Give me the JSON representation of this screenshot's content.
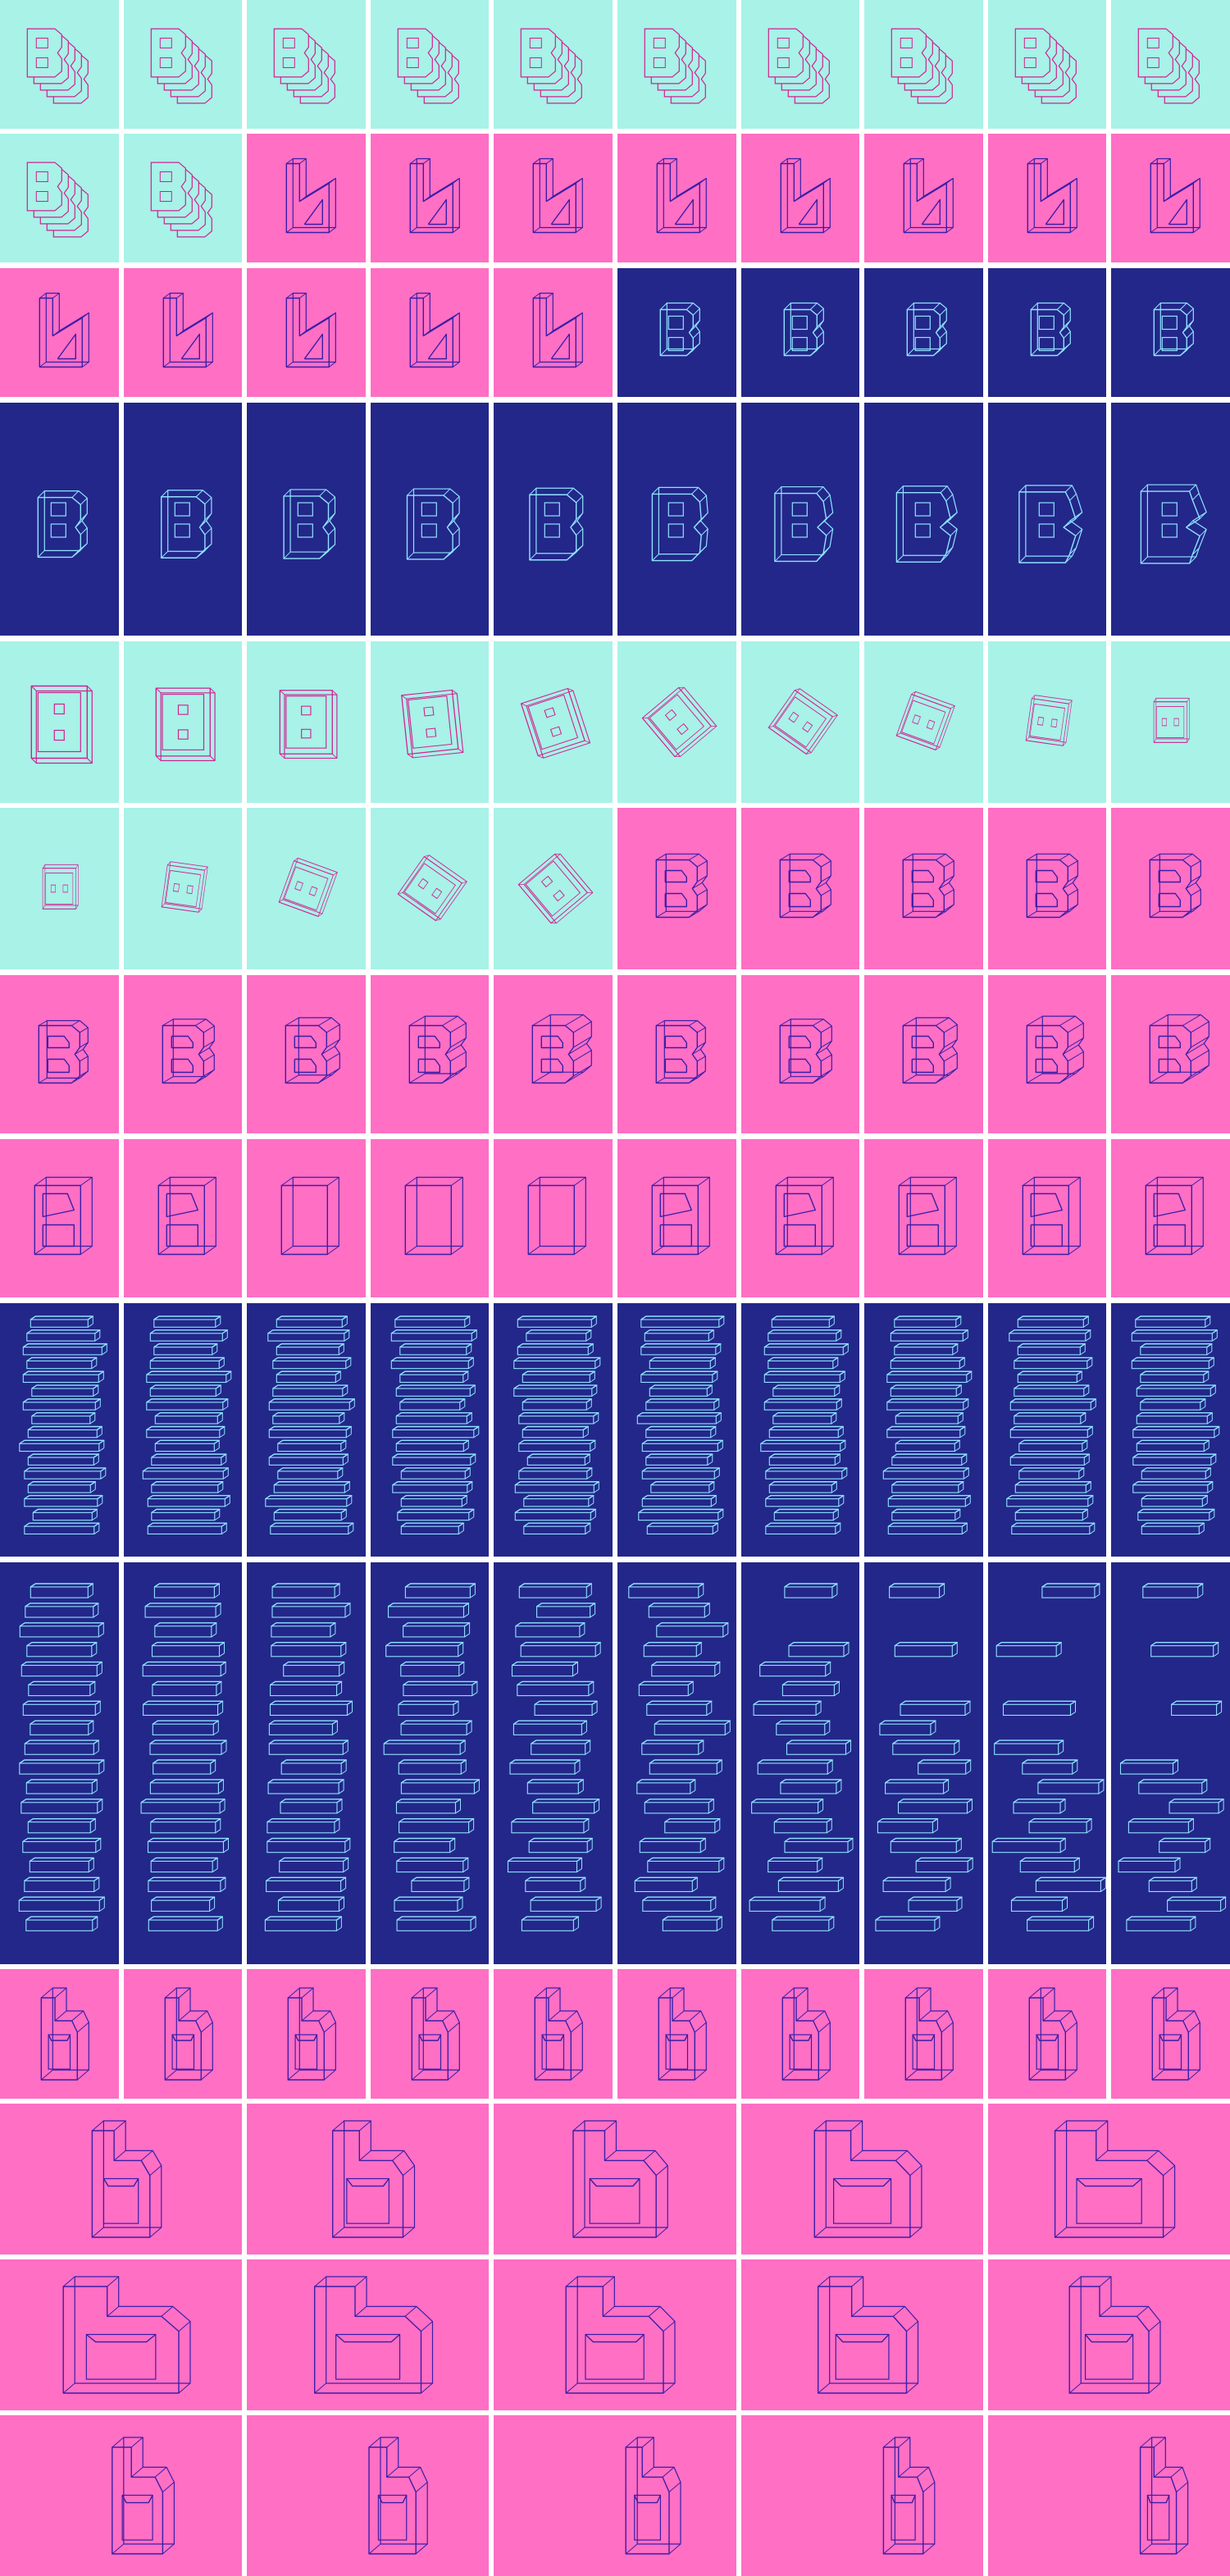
{
  "colors": {
    "mint": "#a8f2e8",
    "pink": "#ff6fc4",
    "navy": "#232789",
    "line_on_mint": "#d0208f",
    "line_on_pink": "#3a1ea6",
    "line_on_navy": "#8fe3ff",
    "gutter": "#ffffff"
  },
  "rows": [
    {
      "kind": "stacked-B",
      "cols": 10,
      "bgs": [
        "mint",
        "mint",
        "mint",
        "mint",
        "mint",
        "mint",
        "mint",
        "mint",
        "mint",
        "mint"
      ]
    },
    {
      "kind": "mixed-stacked-b",
      "cols": 10,
      "bgs": [
        "mint",
        "mint",
        "pink",
        "pink",
        "pink",
        "pink",
        "pink",
        "pink",
        "pink",
        "pink"
      ]
    },
    {
      "kind": "mixed-b-B",
      "cols": 10,
      "bgs": [
        "pink",
        "pink",
        "pink",
        "pink",
        "pink",
        "navy",
        "navy",
        "navy",
        "navy",
        "navy"
      ]
    },
    {
      "kind": "tall-B",
      "cols": 10,
      "bgs": [
        "navy",
        "navy",
        "navy",
        "navy",
        "navy",
        "navy",
        "navy",
        "navy",
        "navy",
        "navy"
      ]
    },
    {
      "kind": "frame-B",
      "cols": 10,
      "bgs": [
        "mint",
        "mint",
        "mint",
        "mint",
        "mint",
        "mint",
        "mint",
        "mint",
        "mint",
        "mint"
      ]
    },
    {
      "kind": "frame-then-B",
      "cols": 10,
      "bgs": [
        "mint",
        "mint",
        "mint",
        "mint",
        "mint",
        "pink",
        "pink",
        "pink",
        "pink",
        "pink"
      ]
    },
    {
      "kind": "extruded-B",
      "cols": 10,
      "bgs": [
        "pink",
        "pink",
        "pink",
        "pink",
        "pink",
        "pink",
        "pink",
        "pink",
        "pink",
        "pink"
      ]
    },
    {
      "kind": "block-B",
      "cols": 10,
      "bgs": [
        "pink",
        "pink",
        "pink",
        "pink",
        "pink",
        "pink",
        "pink",
        "pink",
        "pink",
        "pink"
      ]
    },
    {
      "kind": "slats",
      "cols": 10,
      "bgs": [
        "navy",
        "navy",
        "navy",
        "navy",
        "navy",
        "navy",
        "navy",
        "navy",
        "navy",
        "navy"
      ]
    },
    {
      "kind": "slats-scatter",
      "cols": 10,
      "bgs": [
        "navy",
        "navy",
        "navy",
        "navy",
        "navy",
        "navy",
        "navy",
        "navy",
        "navy",
        "navy"
      ]
    },
    {
      "kind": "small-b",
      "cols": 10,
      "bgs": [
        "pink",
        "pink",
        "pink",
        "pink",
        "pink",
        "pink",
        "pink",
        "pink",
        "pink",
        "pink"
      ]
    },
    {
      "kind": "wide-b",
      "cols": 5,
      "bgs": [
        "pink",
        "pink",
        "pink",
        "pink",
        "pink"
      ]
    },
    {
      "kind": "wide-b-long",
      "cols": 5,
      "bgs": [
        "pink",
        "pink",
        "pink",
        "pink",
        "pink"
      ]
    },
    {
      "kind": "wide-b-right",
      "cols": 5,
      "bgs": [
        "pink",
        "pink",
        "pink",
        "pink",
        "pink"
      ]
    }
  ]
}
